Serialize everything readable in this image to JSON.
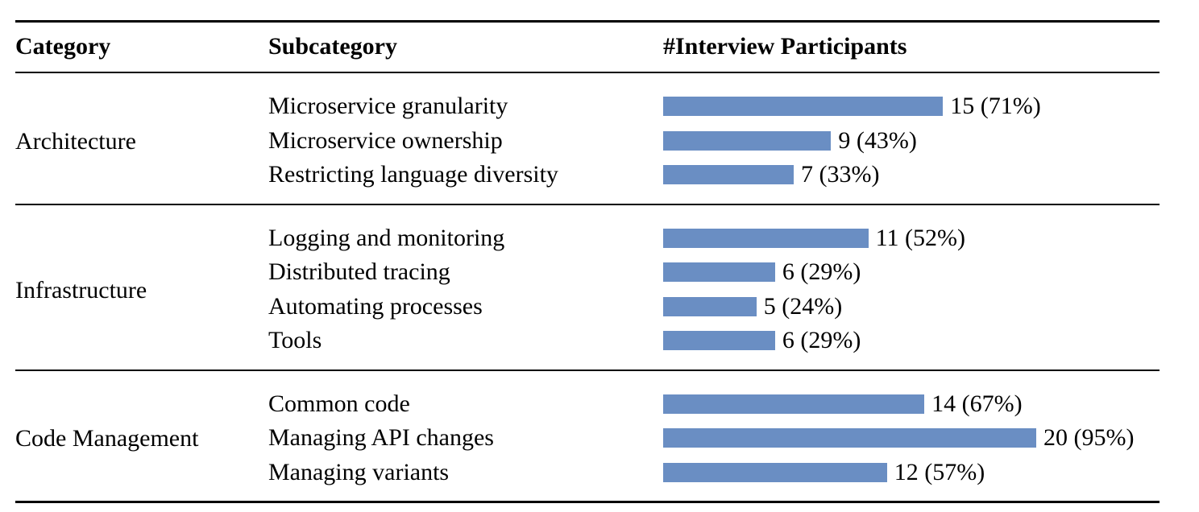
{
  "header": {
    "category": "Category",
    "subcategory": "Subcategory",
    "participants": "#Interview Participants"
  },
  "colors": {
    "bar": "#6a8ec3",
    "rule": "#000000"
  },
  "chart_data": {
    "type": "bar",
    "orientation": "horizontal",
    "groups": [
      {
        "category": "Architecture",
        "rows": [
          {
            "subcategory": "Microservice granularity",
            "value": 15,
            "label": "15 (71%)"
          },
          {
            "subcategory": "Microservice ownership",
            "value": 9,
            "label": "9 (43%)"
          },
          {
            "subcategory": "Restricting language diversity",
            "value": 7,
            "label": "7 (33%)"
          }
        ]
      },
      {
        "category": "Infrastructure",
        "rows": [
          {
            "subcategory": "Logging and monitoring",
            "value": 11,
            "label": "11 (52%)"
          },
          {
            "subcategory": "Distributed tracing",
            "value": 6,
            "label": "6 (29%)"
          },
          {
            "subcategory": "Automating processes",
            "value": 5,
            "label": "5 (24%)"
          },
          {
            "subcategory": "Tools",
            "value": 6,
            "label": "6 (29%)"
          }
        ]
      },
      {
        "category": "Code Management",
        "rows": [
          {
            "subcategory": "Common code",
            "value": 14,
            "label": "14 (67%)"
          },
          {
            "subcategory": "Managing API changes",
            "value": 20,
            "label": "20 (95%)"
          },
          {
            "subcategory": "Managing variants",
            "value": 12,
            "label": "12 (57%)"
          }
        ]
      }
    ]
  }
}
